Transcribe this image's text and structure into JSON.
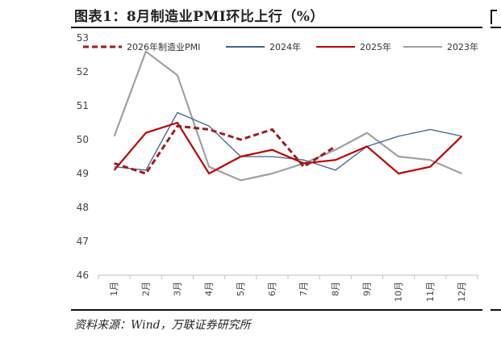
{
  "figure": {
    "title": "图表1：8月制造业PMI环比上行（%）",
    "source": "资料来源：Wind，万联证券研究所"
  },
  "chart_data": {
    "type": "line",
    "categories": [
      "1月",
      "2月",
      "3月",
      "4月",
      "5月",
      "6月",
      "7月",
      "8月",
      "9月",
      "10月",
      "11月",
      "12月"
    ],
    "ylim": [
      46,
      53
    ],
    "yticks": [
      46,
      47,
      48,
      49,
      50,
      51,
      52,
      53
    ],
    "grid": false,
    "legend": "top",
    "series": [
      {
        "name": "2026年制造业PMI",
        "color": "#9e1b1f",
        "style": "dashed",
        "values": [
          49.3,
          49.0,
          50.4,
          50.3,
          50.0,
          50.3,
          49.2,
          49.8,
          null,
          null,
          null,
          null
        ]
      },
      {
        "name": "2024年",
        "color": "#3f6291",
        "style": "solid",
        "values": [
          49.2,
          49.1,
          50.8,
          50.4,
          49.5,
          49.5,
          49.4,
          49.1,
          49.8,
          50.1,
          50.3,
          50.1
        ]
      },
      {
        "name": "2025年",
        "color": "#c00000",
        "style": "solid",
        "values": [
          49.1,
          50.2,
          50.5,
          49.0,
          49.5,
          49.7,
          49.3,
          49.4,
          49.8,
          49.0,
          49.2,
          50.1
        ]
      },
      {
        "name": "2023年",
        "color": "#a0a0a0",
        "style": "solid",
        "values": [
          50.1,
          52.6,
          51.9,
          49.2,
          48.8,
          49.0,
          49.3,
          49.7,
          50.2,
          49.5,
          49.4,
          49.0
        ]
      }
    ]
  }
}
